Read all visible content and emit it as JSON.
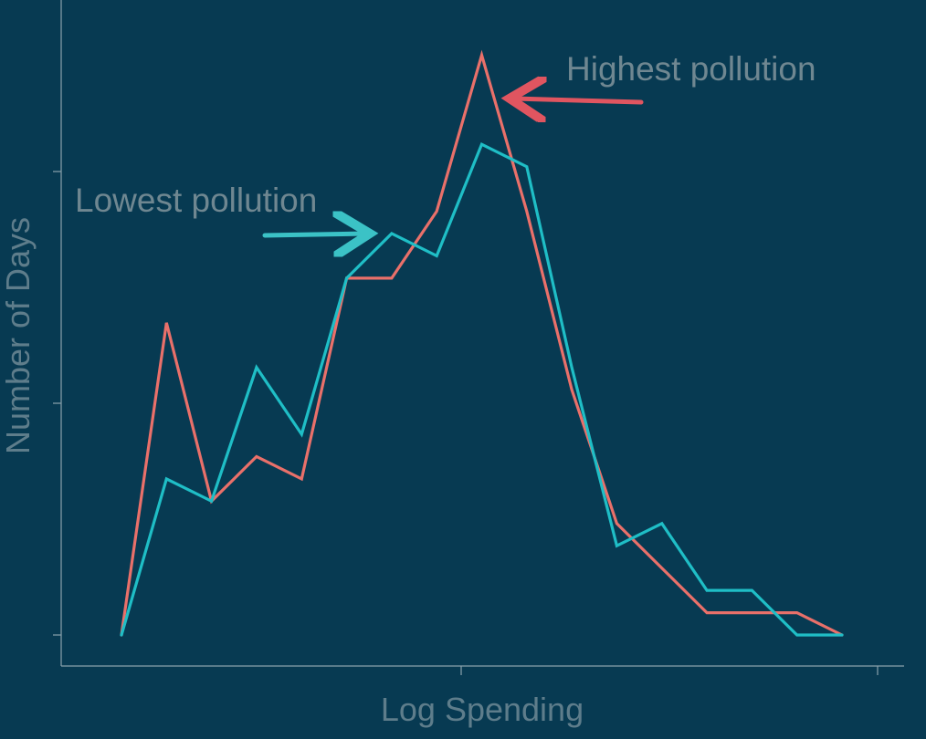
{
  "chart_data": {
    "type": "line",
    "xlabel": "Log Spending",
    "ylabel": "Number of Days",
    "grid": false,
    "x": [
      1,
      2,
      3,
      4,
      5,
      6,
      7,
      8,
      9,
      10,
      11,
      12,
      13,
      14,
      15,
      16,
      17
    ],
    "ylim": [
      0,
      27
    ],
    "xlim": [
      1,
      17
    ],
    "series": [
      {
        "key": "highest",
        "color": "#e9706a",
        "values": [
          0,
          14,
          6,
          8,
          7,
          16,
          16,
          19,
          26,
          19,
          11,
          5,
          3,
          1,
          1,
          1,
          0
        ]
      },
      {
        "key": "lowest",
        "color": "#1fbec6",
        "values": [
          0,
          7,
          6,
          12,
          9,
          16,
          18,
          17,
          22,
          21,
          12,
          4,
          5,
          2,
          2,
          0,
          0
        ]
      }
    ],
    "annotations": [
      {
        "text": "Highest pollution",
        "series": "highest",
        "color": "#e05560"
      },
      {
        "text": "Lowest pollution",
        "series": "lowest",
        "color": "#3bc2c6"
      }
    ]
  }
}
